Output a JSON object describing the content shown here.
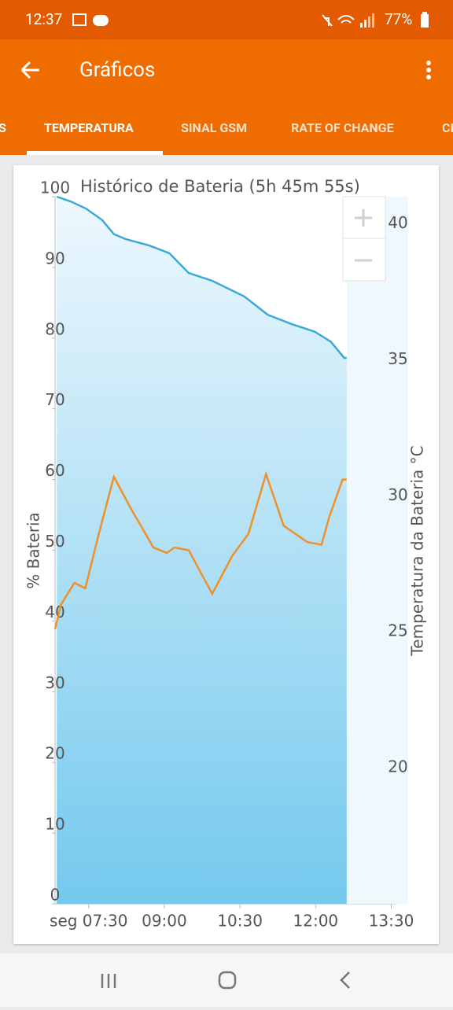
{
  "status": {
    "time": "12:37",
    "battery": "77%"
  },
  "app_bar": {
    "title": "Gráficos"
  },
  "tabs": [
    "S",
    "TEMPERATURA",
    "SINAL GSM",
    "RATE OF CHANGE",
    "CI"
  ],
  "chart_data": {
    "type": "line",
    "title": "Histórico de Bateria (5h 45m 55s)",
    "y_label": "% Bateria",
    "y2_label": "Temperatura da Bateria °C",
    "xlim": [
      410,
      817
    ],
    "xticks": [
      {
        "value": 450,
        "label": "seg 07:30"
      },
      {
        "value": 540,
        "label": "09:00"
      },
      {
        "value": 630,
        "label": "10:30"
      },
      {
        "value": 720,
        "label": "12:00"
      },
      {
        "value": 810,
        "label": "13:30"
      }
    ],
    "ylim": [
      0,
      100
    ],
    "yticks": [
      0,
      10,
      20,
      30,
      40,
      50,
      60,
      70,
      80,
      90,
      100
    ],
    "y2lim": [
      15,
      41
    ],
    "y2ticks": [
      20,
      25,
      30,
      35,
      40
    ],
    "grid": false,
    "series": [
      {
        "name": "% Bateria",
        "color": "#3aa9d8",
        "x": [
          412,
          429,
          447,
          466,
          480,
          494,
          522,
          546,
          569,
          597,
          635,
          663,
          691,
          719,
          738,
          754,
          757
        ],
        "values": [
          100,
          99.3,
          98.3,
          96.7,
          94.7,
          94,
          93.1,
          92,
          89.2,
          88.1,
          85.9,
          83.3,
          82,
          80.9,
          79.5,
          77.2,
          77.2
        ]
      },
      {
        "name": "Temperatura da Bateria °C",
        "color": "#f0902a",
        "axis": "y2",
        "x": [
          410,
          417,
          433,
          446,
          462,
          480,
          499,
          527,
          543,
          552,
          569,
          597,
          621,
          640,
          661,
          682,
          710,
          727,
          736,
          752,
          757
        ],
        "values": [
          25.1,
          26.0,
          26.8,
          26.6,
          28.6,
          30.7,
          29.6,
          28.1,
          27.9,
          28.1,
          28.0,
          26.4,
          27.8,
          28.6,
          30.8,
          28.9,
          28.3,
          28.2,
          29.2,
          30.6,
          30.6
        ]
      }
    ]
  }
}
